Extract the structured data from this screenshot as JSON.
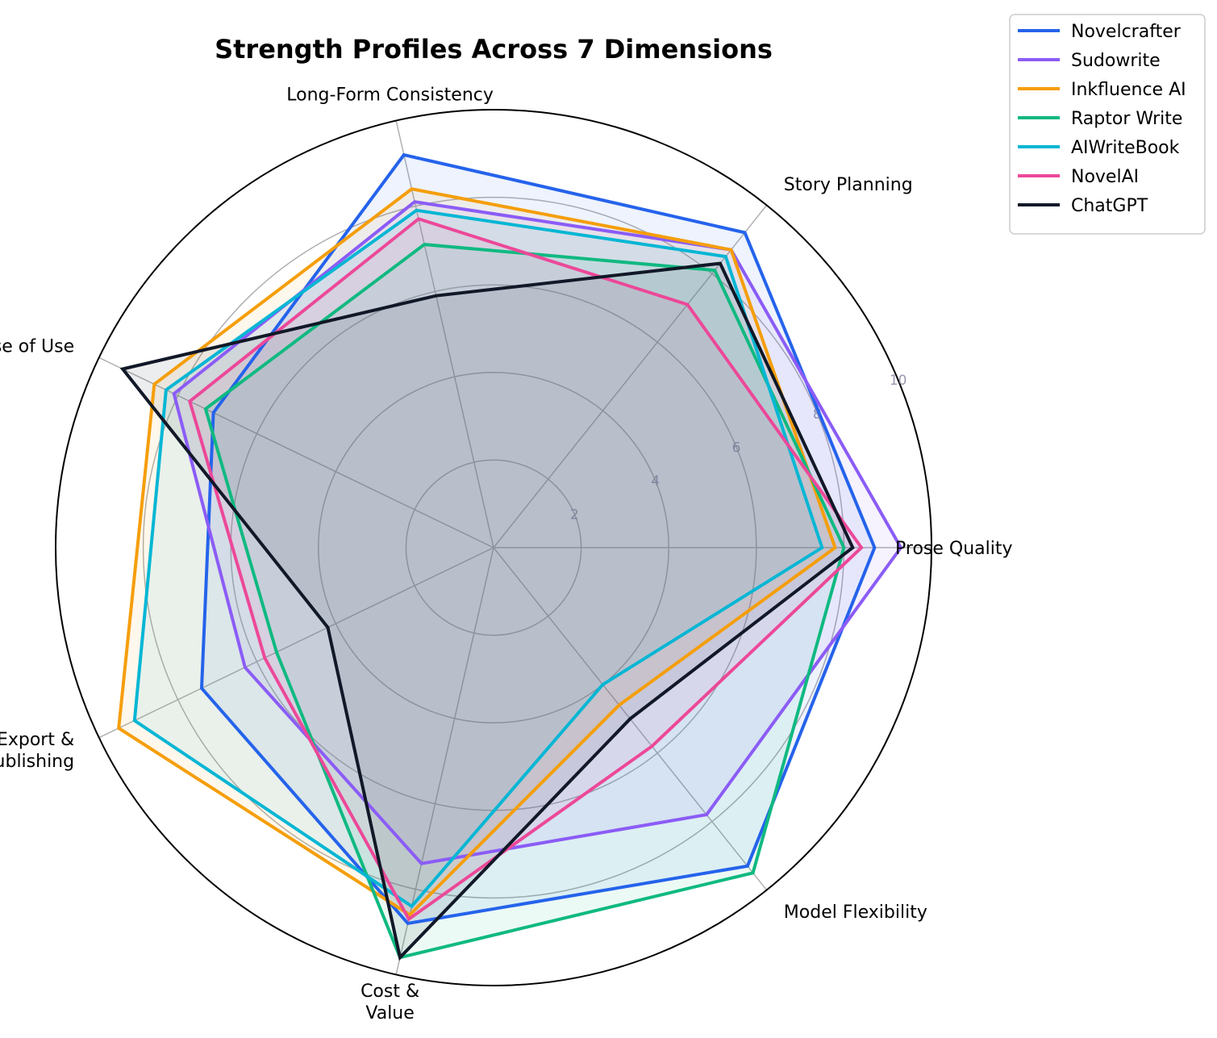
{
  "chart_data": {
    "type": "radar",
    "title": "Strength Profiles Across 7 Dimensions",
    "axes": [
      [
        "Prose Quality"
      ],
      [
        "Story Planning"
      ],
      [
        "Long-Form Consistency"
      ],
      [
        "Ease of Use"
      ],
      [
        "Export &",
        "Publishing"
      ],
      [
        "Cost &",
        "Value"
      ],
      [
        "Model Flexibility"
      ]
    ],
    "rlim": [
      0,
      10
    ],
    "rticks": [
      "2",
      "4",
      "6",
      "8",
      "10"
    ],
    "grid": true,
    "legend_position": "top-right outside",
    "series": [
      {
        "name": "Novelcrafter",
        "color": "#2563eb",
        "values": [
          8.7,
          9.2,
          9.2,
          7.1,
          7.4,
          8.8,
          9.3
        ]
      },
      {
        "name": "Sudowrite",
        "color": "#8b5cf6",
        "values": [
          9.3,
          8.7,
          8.1,
          8.1,
          6.3,
          7.4,
          7.8
        ]
      },
      {
        "name": "Inkfluence AI",
        "color": "#f59e0b",
        "values": [
          7.8,
          8.7,
          8.4,
          8.6,
          9.5,
          8.6,
          4.6
        ]
      },
      {
        "name": "Raptor Write",
        "color": "#10b981",
        "values": [
          8.0,
          8.1,
          7.1,
          7.3,
          5.5,
          9.6,
          9.5
        ]
      },
      {
        "name": "AIWriteBook",
        "color": "#06b6d4",
        "values": [
          7.5,
          8.5,
          7.9,
          8.3,
          9.1,
          8.4,
          4.0
        ]
      },
      {
        "name": "NovelAI",
        "color": "#ec4899",
        "values": [
          8.4,
          7.1,
          7.7,
          7.7,
          5.8,
          8.7,
          5.8
        ]
      },
      {
        "name": "ChatGPT",
        "color": "#111827",
        "values": [
          8.2,
          8.3,
          5.9,
          9.4,
          4.2,
          9.6,
          5.0
        ]
      }
    ]
  }
}
